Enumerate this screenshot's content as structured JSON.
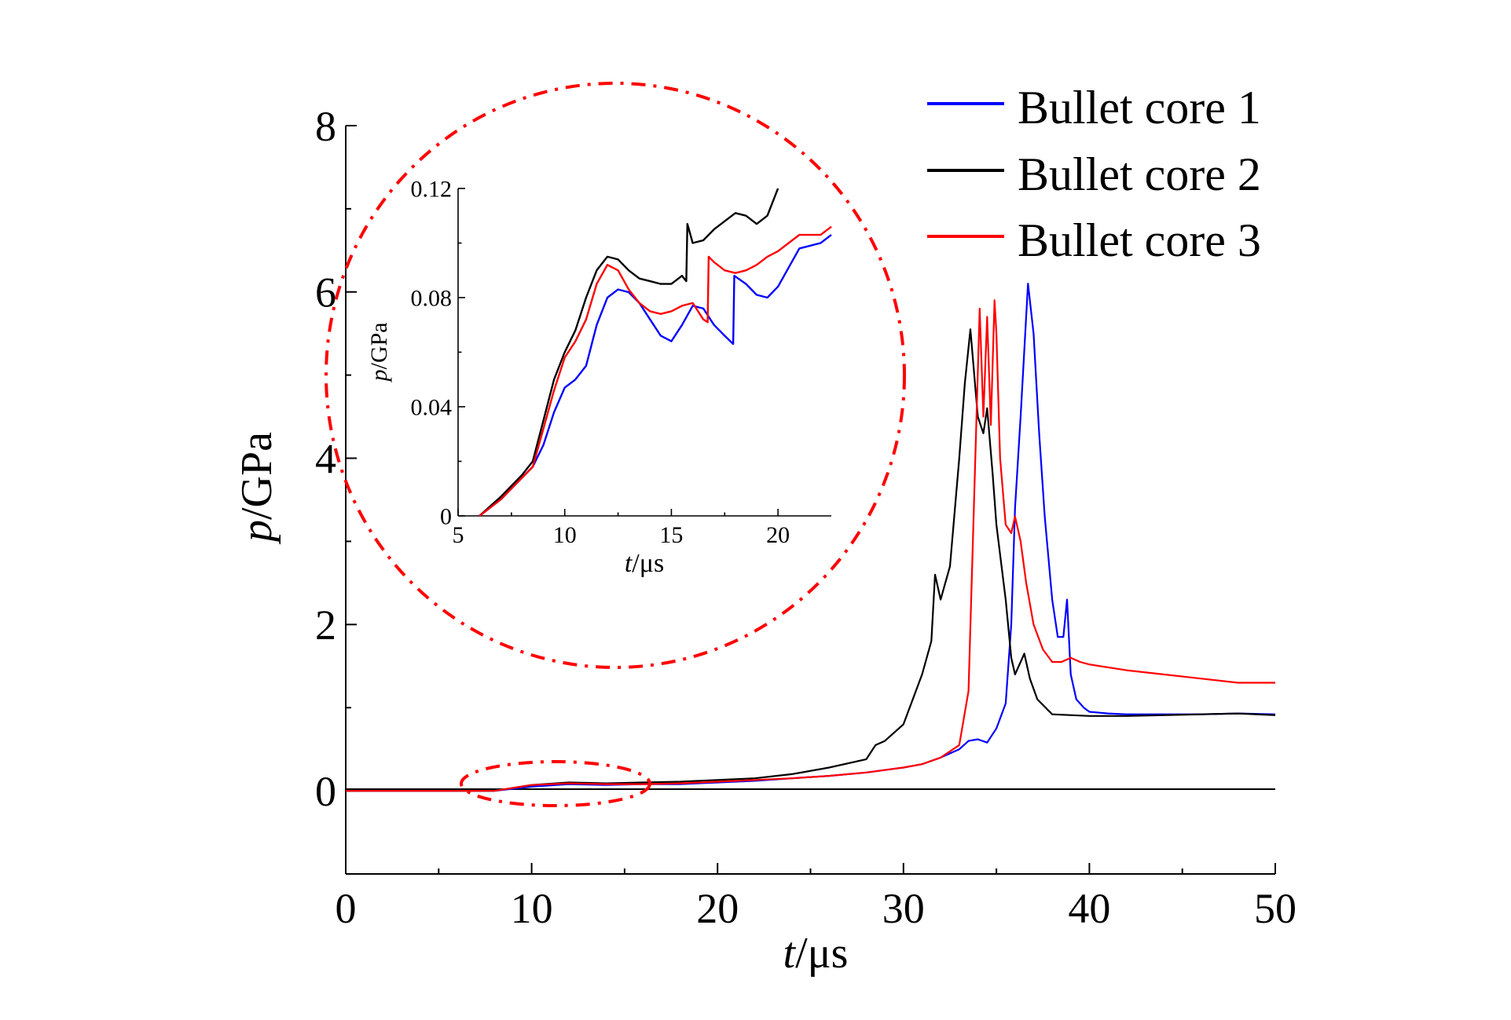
{
  "chart_data": [
    {
      "type": "line",
      "xlabel_italic": "t",
      "xlabel_unit": "/μs",
      "ylabel_italic": "p",
      "ylabel_unit": "/GPa",
      "xlim": [
        0,
        50
      ],
      "ylim": [
        -1,
        8
      ],
      "xticks": [
        0,
        10,
        20,
        30,
        40,
        50
      ],
      "yticks": [
        0,
        2,
        4,
        6,
        8
      ],
      "grid": false,
      "legend_position": "top-right",
      "series": [
        {
          "name": "Bullet core 1",
          "color": "#0000ff",
          "x": [
            0,
            6,
            8,
            10,
            12,
            14,
            16,
            18,
            20,
            22,
            24,
            26,
            28,
            30,
            31,
            32,
            32.5,
            33,
            33.5,
            34,
            34.5,
            35,
            35.5,
            35.8,
            36,
            36.3,
            36.5,
            36.7,
            37,
            37.3,
            37.6,
            38,
            38.3,
            38.6,
            38.8,
            39,
            39.3,
            39.7,
            40,
            41,
            42,
            44,
            46,
            48,
            50
          ],
          "y": [
            0,
            0,
            0,
            0.05,
            0.08,
            0.07,
            0.08,
            0.08,
            0.1,
            0.12,
            0.15,
            0.18,
            0.22,
            0.28,
            0.32,
            0.4,
            0.45,
            0.5,
            0.6,
            0.62,
            0.58,
            0.75,
            1.05,
            2.0,
            3.4,
            4.5,
            5.3,
            6.1,
            5.5,
            4.3,
            3.3,
            2.3,
            1.85,
            1.85,
            2.3,
            1.4,
            1.1,
            1.0,
            0.95,
            0.93,
            0.92,
            0.92,
            0.92,
            0.93,
            0.92
          ]
        },
        {
          "name": "Bullet core 2",
          "color": "#000000",
          "x": [
            0,
            6,
            8,
            10,
            12,
            14,
            16,
            18,
            20,
            22,
            24,
            26,
            28,
            28.5,
            29,
            30,
            31,
            31.5,
            31.7,
            32,
            32.5,
            33,
            33.3,
            33.6,
            34,
            34.3,
            34.5,
            34.8,
            35,
            35.5,
            35.8,
            36,
            36.3,
            36.5,
            36.8,
            37.2,
            38,
            40,
            42,
            44,
            46,
            48,
            50
          ],
          "y": [
            0,
            0,
            0,
            0.07,
            0.1,
            0.09,
            0.1,
            0.11,
            0.13,
            0.15,
            0.2,
            0.28,
            0.38,
            0.55,
            0.6,
            0.8,
            1.4,
            1.8,
            2.6,
            2.3,
            2.7,
            4.0,
            4.9,
            5.55,
            4.5,
            4.3,
            4.6,
            3.8,
            3.2,
            2.3,
            1.6,
            1.4,
            1.55,
            1.65,
            1.35,
            1.1,
            0.92,
            0.9,
            0.9,
            0.91,
            0.92,
            0.93,
            0.91
          ]
        },
        {
          "name": "Bullet core 3",
          "color": "#ff0000",
          "x": [
            0,
            6,
            8,
            10,
            12,
            14,
            16,
            18,
            20,
            22,
            24,
            26,
            28,
            30,
            31,
            32,
            33,
            33.5,
            33.8,
            34.1,
            34.3,
            34.5,
            34.7,
            34.9,
            35,
            35.2,
            35.5,
            35.8,
            36,
            36.3,
            36.6,
            37,
            37.5,
            38,
            38.5,
            39,
            39.5,
            40,
            42,
            44,
            46,
            48,
            50
          ],
          "y": [
            0,
            0,
            0,
            0.07,
            0.09,
            0.08,
            0.08,
            0.09,
            0.11,
            0.13,
            0.15,
            0.18,
            0.22,
            0.28,
            0.32,
            0.4,
            0.55,
            1.2,
            3.5,
            5.8,
            4.5,
            5.7,
            4.4,
            5.9,
            5.5,
            4.0,
            3.2,
            3.1,
            3.3,
            3.0,
            2.5,
            2.0,
            1.7,
            1.55,
            1.55,
            1.6,
            1.55,
            1.52,
            1.45,
            1.4,
            1.35,
            1.3,
            1.3
          ]
        }
      ]
    },
    {
      "type": "line",
      "xlabel_italic": "t",
      "xlabel_unit": "/μs",
      "ylabel_italic": "p",
      "ylabel_unit": "/GPa",
      "xlim": [
        5,
        22.5
      ],
      "ylim": [
        0,
        0.12
      ],
      "xticks": [
        5,
        10,
        15,
        20
      ],
      "yticks": [
        0,
        0.04,
        0.08,
        0.12
      ],
      "ytick_labels": [
        "0",
        "0.04",
        "0.08",
        "0.12"
      ],
      "grid": false,
      "series": [
        {
          "name": "Bullet core 1",
          "color": "#0000ff",
          "x": [
            6,
            7,
            8,
            8.5,
            9,
            9.5,
            10,
            10.5,
            11,
            11.5,
            12,
            12.5,
            13,
            13.5,
            14,
            14.5,
            15,
            15.5,
            16,
            16.5,
            17,
            17.5,
            17.9,
            17.95,
            18.5,
            19,
            19.5,
            20,
            21,
            22,
            22.5
          ],
          "y": [
            0,
            0.006,
            0.014,
            0.018,
            0.026,
            0.038,
            0.047,
            0.05,
            0.055,
            0.07,
            0.08,
            0.083,
            0.082,
            0.078,
            0.072,
            0.066,
            0.064,
            0.07,
            0.077,
            0.076,
            0.07,
            0.066,
            0.063,
            0.088,
            0.085,
            0.081,
            0.08,
            0.084,
            0.098,
            0.1,
            0.103
          ]
        },
        {
          "name": "Bullet core 2",
          "color": "#000000",
          "x": [
            6,
            7,
            8,
            8.5,
            9,
            9.5,
            10,
            10.5,
            11,
            11.5,
            12,
            12.5,
            13,
            13.5,
            14,
            14.5,
            15,
            15.5,
            15.7,
            15.75,
            16,
            16.5,
            17,
            17.5,
            18,
            18.5,
            19,
            19.5,
            20
          ],
          "y": [
            0,
            0.007,
            0.015,
            0.02,
            0.035,
            0.05,
            0.06,
            0.068,
            0.08,
            0.09,
            0.095,
            0.094,
            0.09,
            0.087,
            0.086,
            0.085,
            0.085,
            0.088,
            0.086,
            0.107,
            0.1,
            0.101,
            0.105,
            0.108,
            0.111,
            0.11,
            0.107,
            0.11,
            0.12
          ]
        },
        {
          "name": "Bullet core 3",
          "color": "#ff0000",
          "x": [
            6,
            7,
            8,
            8.5,
            9,
            9.5,
            10,
            10.5,
            11,
            11.5,
            12,
            12.5,
            13,
            13.5,
            14,
            14.5,
            15,
            15.5,
            16,
            16.5,
            16.7,
            16.75,
            17,
            17.5,
            18,
            18.5,
            19,
            19.5,
            20,
            20.5,
            21,
            22,
            22.5
          ],
          "y": [
            0,
            0.006,
            0.014,
            0.018,
            0.032,
            0.046,
            0.058,
            0.064,
            0.072,
            0.085,
            0.092,
            0.09,
            0.083,
            0.078,
            0.075,
            0.074,
            0.075,
            0.077,
            0.078,
            0.072,
            0.071,
            0.095,
            0.093,
            0.09,
            0.089,
            0.09,
            0.092,
            0.095,
            0.097,
            0.1,
            0.103,
            0.103,
            0.106
          ]
        }
      ]
    }
  ]
}
